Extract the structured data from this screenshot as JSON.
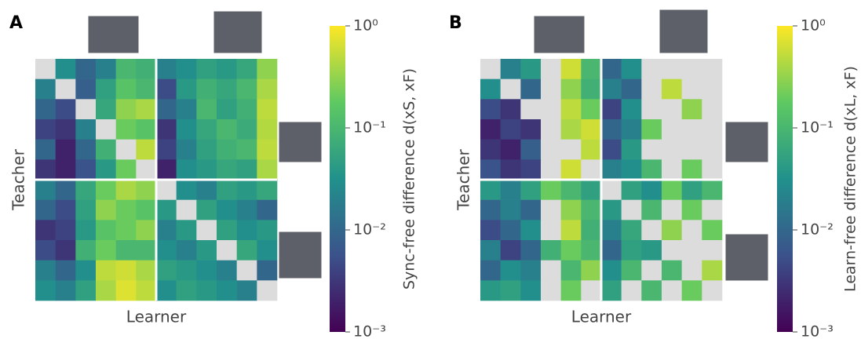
{
  "chart_data": [
    {
      "type": "heatmap",
      "panel_label": "A",
      "xlabel": "Learner",
      "ylabel": "Teacher",
      "colorbar_label": "Sync-free difference d(xS, xF)",
      "colormap": "viridis",
      "log_scale": true,
      "null_color": "#dcdcdc",
      "zlim": [
        0.001,
        1
      ],
      "zticks": [
        {
          "value": 1,
          "label": "10⁰"
        },
        {
          "value": 0.1,
          "label": "10⁻¹"
        },
        {
          "value": 0.01,
          "label": "10⁻²"
        },
        {
          "value": 0.001,
          "label": "10⁻³"
        }
      ],
      "values": [
        [
          null,
          0.03,
          0.01,
          0.02,
          0.1,
          0.08,
          0.02,
          0.03,
          0.05,
          0.04,
          0.06,
          0.3
        ],
        [
          0.02,
          null,
          0.008,
          0.05,
          0.15,
          0.1,
          0.005,
          0.04,
          0.08,
          0.06,
          0.1,
          0.4
        ],
        [
          0.01,
          0.005,
          null,
          0.06,
          0.3,
          0.4,
          0.01,
          0.02,
          0.1,
          0.05,
          0.08,
          0.5
        ],
        [
          0.004,
          0.003,
          0.02,
          null,
          0.2,
          0.15,
          0.003,
          0.03,
          0.06,
          0.1,
          0.07,
          0.45
        ],
        [
          0.01,
          0.002,
          0.01,
          0.08,
          null,
          0.5,
          0.004,
          0.02,
          0.05,
          0.08,
          0.1,
          0.5
        ],
        [
          0.003,
          0.002,
          0.006,
          0.04,
          0.2,
          null,
          0.002,
          0.03,
          0.04,
          0.06,
          0.05,
          0.4
        ],
        [
          0.02,
          0.01,
          0.06,
          0.2,
          0.4,
          0.3,
          null,
          0.03,
          0.02,
          0.05,
          0.04,
          0.06
        ],
        [
          0.01,
          0.005,
          0.05,
          0.3,
          0.2,
          0.15,
          0.04,
          null,
          0.05,
          0.03,
          0.02,
          0.01
        ],
        [
          0.003,
          0.004,
          0.04,
          0.15,
          0.2,
          0.3,
          0.02,
          0.04,
          null,
          0.05,
          0.03,
          0.04
        ],
        [
          0.005,
          0.003,
          0.08,
          0.2,
          0.1,
          0.1,
          0.03,
          0.02,
          0.04,
          null,
          0.06,
          0.03
        ],
        [
          0.02,
          0.01,
          0.03,
          0.5,
          0.6,
          0.4,
          0.05,
          0.04,
          0.03,
          0.02,
          null,
          0.01
        ],
        [
          0.03,
          0.02,
          0.05,
          0.4,
          0.7,
          0.5,
          0.03,
          0.05,
          0.04,
          0.03,
          0.02,
          null
        ]
      ]
    },
    {
      "type": "heatmap",
      "panel_label": "B",
      "xlabel": "Learner",
      "ylabel": "Teacher",
      "colorbar_label": "Learn-free difference d(xL, xF)",
      "colormap": "viridis",
      "log_scale": true,
      "null_color": "#dcdcdc",
      "zlim": [
        0.001,
        1
      ],
      "zticks": [
        {
          "value": 1,
          "label": "10⁰"
        },
        {
          "value": 0.1,
          "label": "10⁻¹"
        },
        {
          "value": 0.01,
          "label": "10⁻²"
        },
        {
          "value": 0.001,
          "label": "10⁻³"
        }
      ],
      "values": [
        [
          null,
          0.02,
          0.04,
          null,
          0.6,
          0.1,
          0.01,
          0.03,
          null,
          null,
          null,
          null
        ],
        [
          0.03,
          null,
          0.01,
          null,
          0.3,
          0.08,
          0.02,
          0.01,
          null,
          0.5,
          null,
          null
        ],
        [
          0.005,
          0.003,
          null,
          null,
          0.5,
          0.2,
          0.004,
          0.03,
          null,
          null,
          0.3,
          null
        ],
        [
          0.002,
          0.004,
          0.003,
          null,
          0.4,
          0.6,
          0.01,
          0.02,
          0.2,
          null,
          null,
          null
        ],
        [
          0.003,
          0.002,
          0.008,
          null,
          null,
          0.5,
          0.005,
          0.04,
          null,
          null,
          null,
          null
        ],
        [
          0.006,
          0.003,
          0.004,
          null,
          0.6,
          null,
          0.02,
          0.03,
          0.1,
          null,
          0.2,
          null
        ],
        [
          0.04,
          0.02,
          0.05,
          0.2,
          0.1,
          0.05,
          null,
          0.05,
          0.03,
          0.2,
          0.05,
          0.1
        ],
        [
          0.01,
          0.02,
          0.01,
          null,
          0.3,
          0.1,
          0.04,
          null,
          0.1,
          null,
          0.2,
          null
        ],
        [
          0.005,
          0.01,
          0.03,
          null,
          0.5,
          0.08,
          0.02,
          0.06,
          null,
          0.3,
          null,
          0.2
        ],
        [
          0.02,
          0.004,
          0.01,
          0.08,
          0.2,
          0.1,
          0.01,
          0.05,
          0.04,
          null,
          null,
          null
        ],
        [
          0.01,
          0.03,
          0.02,
          null,
          0.1,
          0.3,
          0.03,
          0.1,
          null,
          0.1,
          null,
          0.4
        ],
        [
          0.04,
          0.05,
          0.03,
          null,
          0.2,
          null,
          0.05,
          null,
          0.1,
          null,
          0.2,
          null
        ]
      ]
    }
  ]
}
